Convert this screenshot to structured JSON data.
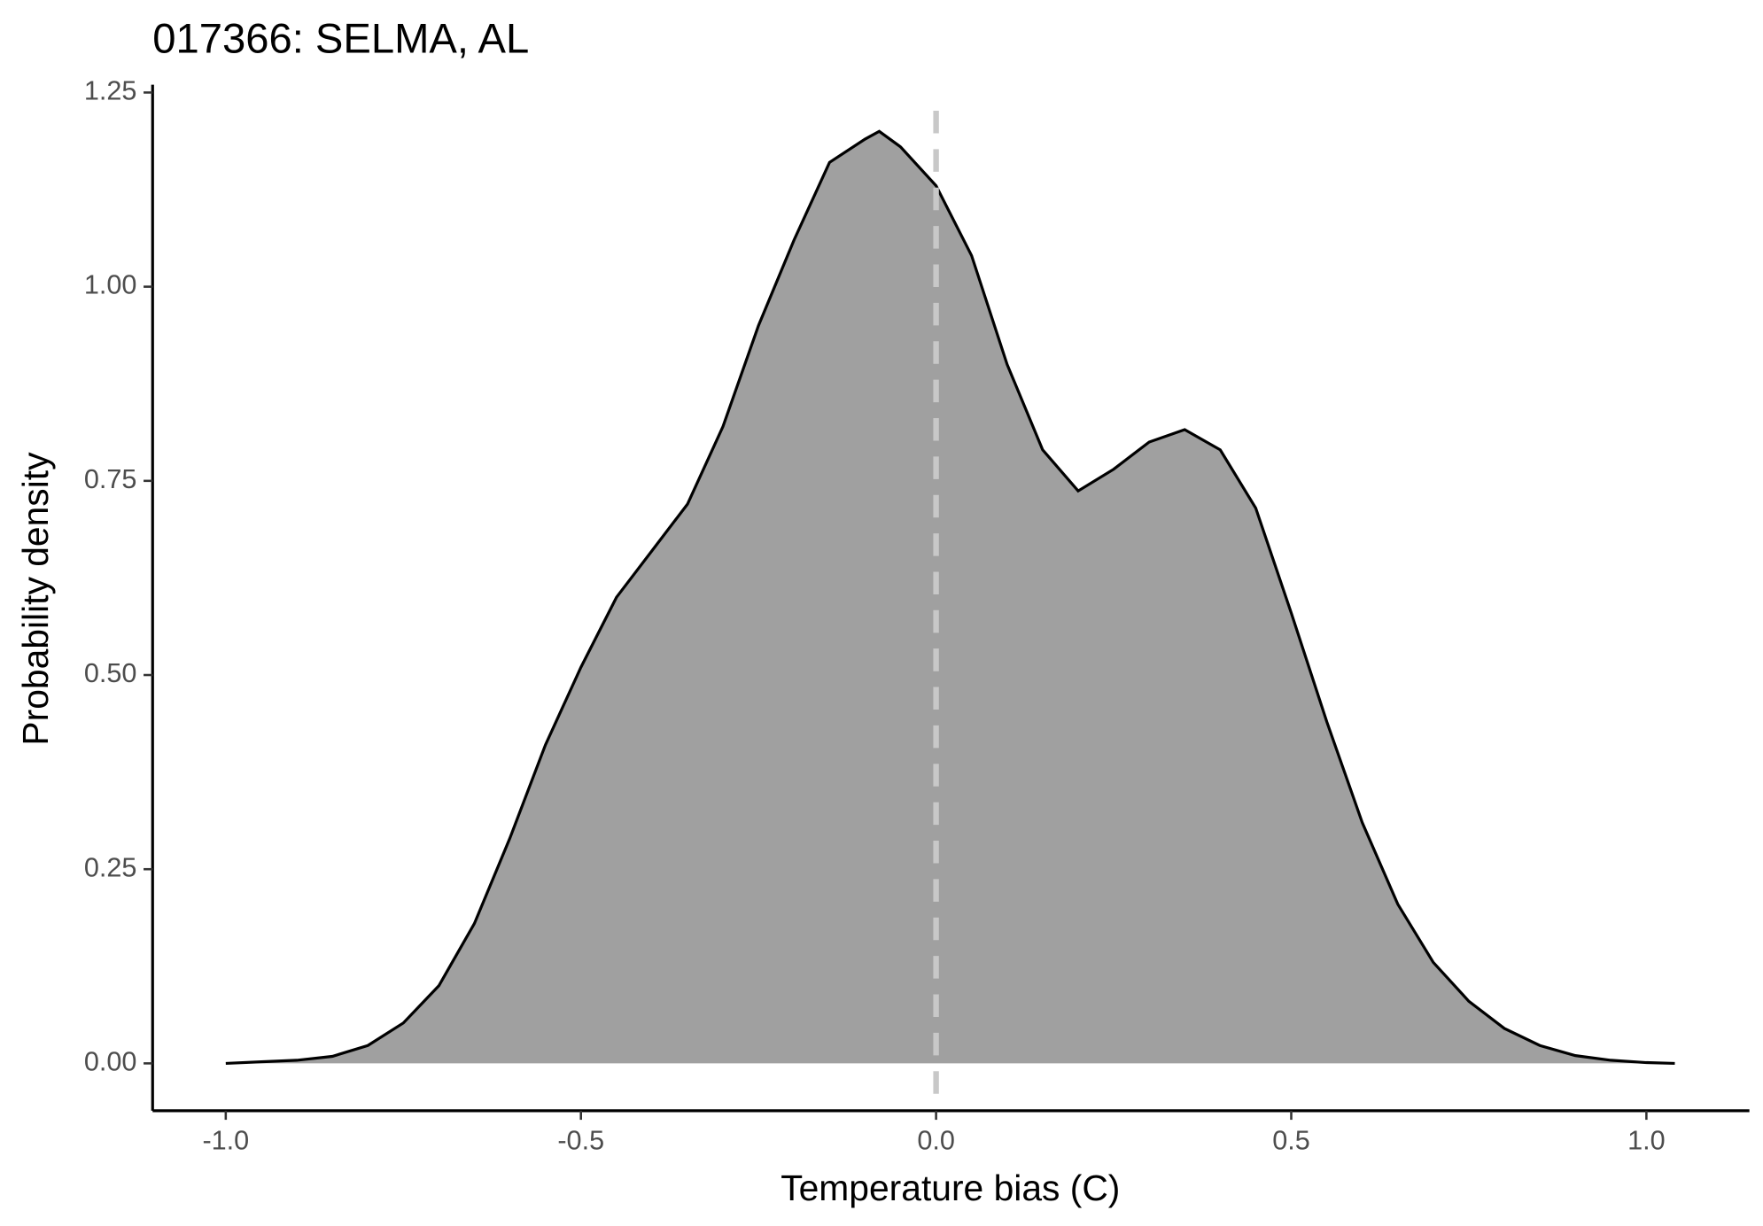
{
  "chart_data": {
    "type": "area",
    "title": "017366: SELMA, AL",
    "x_label": "Temperature bias (C)",
    "y_label": "Probability density",
    "x": [
      -1.0,
      -0.95,
      -0.9,
      -0.85,
      -0.8,
      -0.75,
      -0.7,
      -0.65,
      -0.6,
      -0.55,
      -0.5,
      -0.45,
      -0.4,
      -0.35,
      -0.3,
      -0.25,
      -0.2,
      -0.15,
      -0.1,
      -0.08,
      -0.05,
      0.0,
      0.05,
      0.1,
      0.15,
      0.2,
      0.25,
      0.3,
      0.35,
      0.4,
      0.45,
      0.5,
      0.55,
      0.6,
      0.65,
      0.7,
      0.75,
      0.8,
      0.85,
      0.9,
      0.95,
      1.0,
      1.04
    ],
    "values": [
      0.0,
      0.002,
      0.004,
      0.009,
      0.023,
      0.052,
      0.1,
      0.18,
      0.29,
      0.41,
      0.51,
      0.6,
      0.66,
      0.72,
      0.82,
      0.95,
      1.06,
      1.16,
      1.19,
      1.2,
      1.18,
      1.13,
      1.04,
      0.9,
      0.79,
      0.737,
      0.765,
      0.8,
      0.816,
      0.79,
      0.715,
      0.58,
      0.44,
      0.31,
      0.205,
      0.13,
      0.08,
      0.045,
      0.023,
      0.01,
      0.004,
      0.001,
      0.0
    ],
    "color": "#a0a0a0",
    "line_color": "#000000",
    "vline": 0,
    "vline_color": "#c8c8c8",
    "xlim": [
      -1.103,
      1.145
    ],
    "ylim": [
      -0.061,
      1.26
    ],
    "xticks": [
      {
        "value": -1,
        "label": "-1.0"
      },
      -0.5,
      {
        "value": 0,
        "label": "0.0"
      },
      0.5,
      {
        "value": 1,
        "label": "1.0"
      }
    ],
    "yticks": [
      {
        "value": 0,
        "label": "0.00"
      },
      0.25,
      {
        "value": 0.5,
        "label": "0.50"
      },
      0.75,
      {
        "value": 1,
        "label": "1.00"
      },
      1.25
    ]
  }
}
